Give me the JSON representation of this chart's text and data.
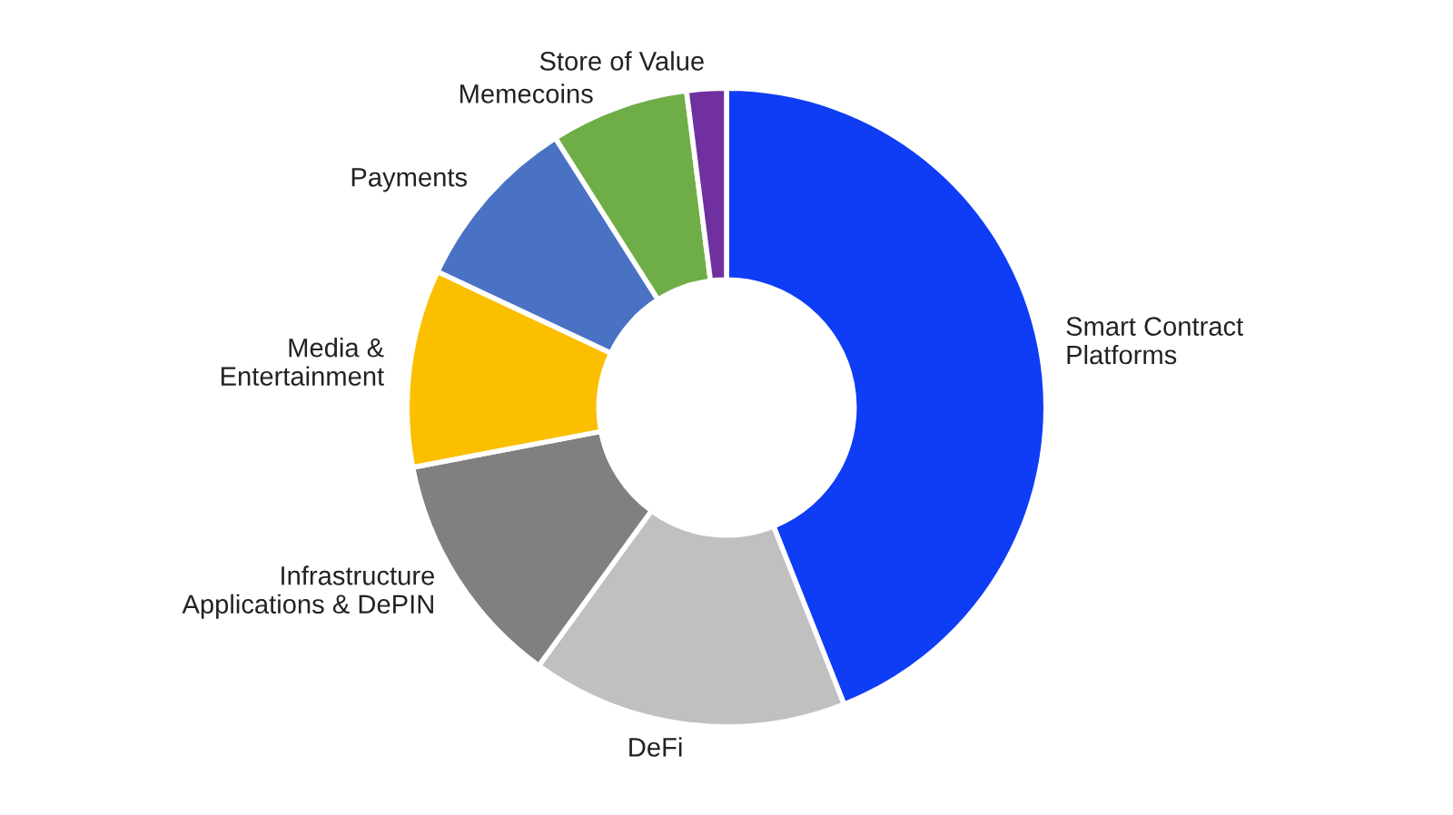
{
  "chart_data": {
    "type": "donut",
    "categories": [
      "Smart Contract\nPlatforms",
      "DeFi",
      "Infrastructure\nApplications & DePIN",
      "Media &\nEntertainment",
      "Payments",
      "Memecoins",
      "Store of Value"
    ],
    "values": [
      44,
      16,
      12,
      10,
      9,
      7,
      2
    ],
    "colors": [
      "#0f3cf5",
      "#c0c0c0",
      "#808080",
      "#fbbf00",
      "#4a72c4",
      "#6fad47",
      "#7030a0"
    ],
    "legend": false
  }
}
